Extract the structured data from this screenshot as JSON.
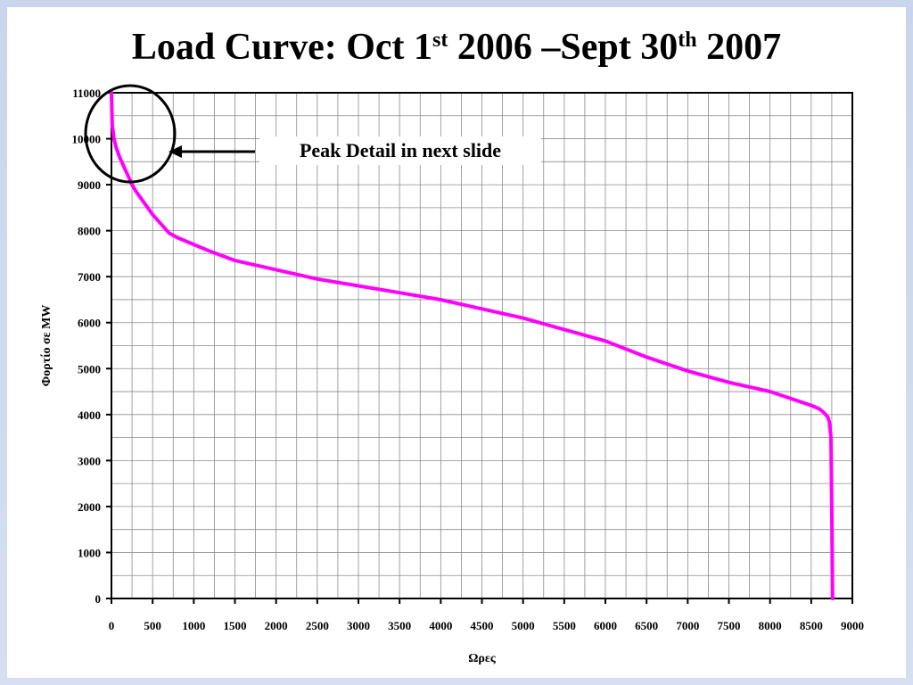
{
  "slide": {
    "title_main": "Load Curve: Oct 1",
    "title_sup1": "st",
    "title_mid": " 2006 –Sept 30",
    "title_sup2": "th",
    "title_end": "  2007"
  },
  "callout": {
    "text": "Peak Detail in next slide"
  },
  "chart_data": {
    "type": "line",
    "xlabel": "Ωρες",
    "ylabel": "Φορτίο σε MW",
    "xlim": [
      0,
      9000
    ],
    "ylim": [
      0,
      11000
    ],
    "x_ticks": [
      0,
      500,
      1000,
      1500,
      2000,
      2500,
      3000,
      3500,
      4000,
      4500,
      5000,
      5500,
      6000,
      6500,
      7000,
      7500,
      8000,
      8500,
      9000
    ],
    "y_ticks": [
      0,
      1000,
      2000,
      3000,
      4000,
      5000,
      6000,
      7000,
      8000,
      9000,
      10000,
      11000
    ],
    "grid": true,
    "line_color": "#ff00ff",
    "series": [
      {
        "x": [
          0,
          10,
          30,
          60,
          100,
          150,
          200,
          250,
          300,
          400,
          500,
          600,
          700,
          800,
          1000,
          1200,
          1500,
          2000,
          2500,
          3000,
          3500,
          4000,
          4500,
          5000,
          5500,
          6000,
          6500,
          7000,
          7500,
          8000,
          8300,
          8500,
          8600,
          8650,
          8700,
          8720,
          8740,
          8750,
          8760
        ],
        "y": [
          11000,
          10300,
          10000,
          9800,
          9600,
          9400,
          9200,
          9000,
          8850,
          8600,
          8350,
          8150,
          7950,
          7850,
          7700,
          7550,
          7350,
          7150,
          6950,
          6800,
          6650,
          6500,
          6300,
          6100,
          5850,
          5600,
          5250,
          4950,
          4700,
          4500,
          4320,
          4200,
          4120,
          4050,
          3950,
          3850,
          3500,
          2000,
          0
        ]
      }
    ]
  }
}
